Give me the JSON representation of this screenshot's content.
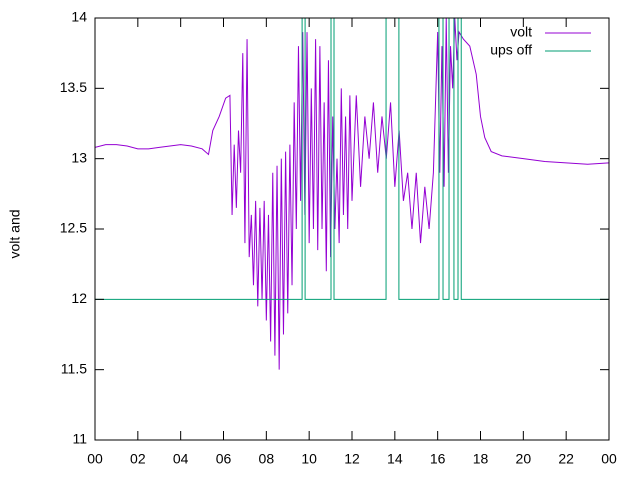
{
  "chart_data": {
    "type": "line",
    "ylabel": "volt and",
    "xlim": [
      0,
      24
    ],
    "xticks": [
      {
        "value": 0,
        "label": "00"
      },
      {
        "value": 2,
        "label": "02"
      },
      {
        "value": 4,
        "label": "04"
      },
      {
        "value": 6,
        "label": "06"
      },
      {
        "value": 8,
        "label": "08"
      },
      {
        "value": 10,
        "label": "10"
      },
      12,
      14,
      16,
      18,
      20,
      22,
      {
        "value": 24,
        "label": "00"
      }
    ],
    "ylim": [
      11,
      14
    ],
    "yticks": [
      11,
      11.5,
      12,
      12.5,
      13,
      13.5,
      14
    ],
    "legend": "top-right",
    "series": [
      {
        "name": "volt",
        "color": "#9400d3",
        "x": [
          0,
          0.5,
          1,
          1.5,
          2,
          2.5,
          3,
          3.5,
          4,
          4.5,
          5,
          5.3,
          5.5,
          5.8,
          6.1,
          6.3,
          6.4,
          6.5,
          6.6,
          6.7,
          6.8,
          6.9,
          7.0,
          7.1,
          7.2,
          7.3,
          7.4,
          7.5,
          7.6,
          7.7,
          7.8,
          7.9,
          8.0,
          8.1,
          8.2,
          8.3,
          8.4,
          8.5,
          8.6,
          8.7,
          8.8,
          8.9,
          9.0,
          9.1,
          9.2,
          9.3,
          9.4,
          9.5,
          9.6,
          9.7,
          9.8,
          9.9,
          10.0,
          10.1,
          10.2,
          10.3,
          10.4,
          10.5,
          10.6,
          10.7,
          10.8,
          10.9,
          11.0,
          11.1,
          11.2,
          11.3,
          11.4,
          11.5,
          11.6,
          11.7,
          11.8,
          11.9,
          12.0,
          12.2,
          12.4,
          12.6,
          12.8,
          13.0,
          13.2,
          13.4,
          13.6,
          13.8,
          14.0,
          14.2,
          14.4,
          14.6,
          14.8,
          15.0,
          15.2,
          15.4,
          15.6,
          15.8,
          16.0,
          16.1,
          16.2,
          16.3,
          16.4,
          16.5,
          16.6,
          16.7,
          16.8,
          16.9,
          17.0,
          17.2,
          17.5,
          17.8,
          18.0,
          18.2,
          18.5,
          19,
          20,
          21,
          22,
          23,
          24
        ],
        "values": [
          13.08,
          13.1,
          13.1,
          13.09,
          13.07,
          13.07,
          13.08,
          13.09,
          13.1,
          13.09,
          13.07,
          13.03,
          13.2,
          13.3,
          13.43,
          13.45,
          12.6,
          13.1,
          12.65,
          13.2,
          12.9,
          13.75,
          12.4,
          13.85,
          12.3,
          12.6,
          12.1,
          12.7,
          11.95,
          12.65,
          12.0,
          12.7,
          11.85,
          12.6,
          11.7,
          12.9,
          11.6,
          12.95,
          11.5,
          13.0,
          11.75,
          13.05,
          11.9,
          13.1,
          12.1,
          13.4,
          12.5,
          13.8,
          12.7,
          13.9,
          12.6,
          13.9,
          12.4,
          13.5,
          12.5,
          13.85,
          12.35,
          13.8,
          12.5,
          13.4,
          12.2,
          13.7,
          12.3,
          13.3,
          12.5,
          13.0,
          12.4,
          13.5,
          12.6,
          13.3,
          12.5,
          13.45,
          12.7,
          13.45,
          12.8,
          13.3,
          13.0,
          13.4,
          12.9,
          13.3,
          13.0,
          13.4,
          12.8,
          13.2,
          12.7,
          12.9,
          12.5,
          12.9,
          12.4,
          12.8,
          12.5,
          12.9,
          13.9,
          12.9,
          13.8,
          12.8,
          14.0,
          12.9,
          13.8,
          13.5,
          14.0,
          13.7,
          13.9,
          13.85,
          13.8,
          13.6,
          13.3,
          13.15,
          13.05,
          13.02,
          13.0,
          12.98,
          12.97,
          12.96,
          12.97
        ]
      },
      {
        "name": "ups off",
        "color": "#009e73",
        "x": [
          0,
          9.67,
          9.67,
          9.81,
          9.81,
          11.02,
          11.02,
          11.16,
          11.16,
          13.59,
          13.59,
          14.19,
          14.19,
          16.06,
          16.06,
          16.25,
          16.25,
          16.53,
          16.53,
          16.76,
          16.76,
          16.95,
          16.95,
          17.1,
          17.1,
          24
        ],
        "values": [
          12,
          12,
          14,
          14,
          12,
          12,
          14,
          14,
          12,
          12,
          14,
          14,
          12,
          12,
          14,
          14,
          12,
          12,
          14,
          14,
          12,
          12,
          14,
          14,
          12,
          12
        ]
      }
    ]
  }
}
